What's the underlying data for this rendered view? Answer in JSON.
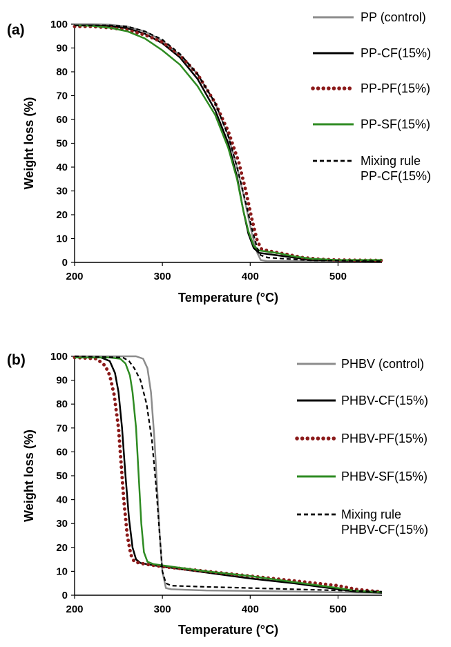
{
  "chart_data": [
    {
      "type": "line",
      "panel_label": "(a)",
      "xlabel": "Temperature (°C)",
      "ylabel": "Weight loss (%)",
      "xlim": [
        200,
        550
      ],
      "ylim": [
        0,
        100
      ],
      "xticks": [
        200,
        300,
        400,
        500
      ],
      "yticks": [
        0,
        10,
        20,
        30,
        40,
        50,
        60,
        70,
        80,
        90,
        100
      ],
      "grid": false,
      "legend_position": "right",
      "series": [
        {
          "name": "PP (control)",
          "color": "#8c8c8c",
          "style": "solid",
          "points": [
            [
              200,
              100
            ],
            [
              220,
              100
            ],
            [
              240,
              99.8
            ],
            [
              260,
              99
            ],
            [
              280,
              97
            ],
            [
              300,
              93
            ],
            [
              320,
              87
            ],
            [
              340,
              79
            ],
            [
              360,
              67
            ],
            [
              375,
              53
            ],
            [
              385,
              40
            ],
            [
              395,
              24
            ],
            [
              402,
              12
            ],
            [
              408,
              4
            ],
            [
              412,
              1
            ],
            [
              420,
              0.5
            ],
            [
              550,
              0.5
            ]
          ]
        },
        {
          "name": "PP-CF(15%)",
          "color": "#000000",
          "style": "solid",
          "points": [
            [
              200,
              99.5
            ],
            [
              220,
              99.5
            ],
            [
              240,
              99.2
            ],
            [
              260,
              98.3
            ],
            [
              280,
              96
            ],
            [
              300,
              92
            ],
            [
              320,
              86
            ],
            [
              340,
              77
            ],
            [
              360,
              64
            ],
            [
              375,
              50
            ],
            [
              385,
              36
            ],
            [
              392,
              22
            ],
            [
              398,
              12
            ],
            [
              404,
              6
            ],
            [
              410,
              4
            ],
            [
              430,
              3
            ],
            [
              450,
              2
            ],
            [
              470,
              1
            ],
            [
              550,
              0.5
            ]
          ]
        },
        {
          "name": "PP-PF(15%)",
          "color": "#8b1a1a",
          "style": "dotted",
          "points": [
            [
              200,
              99
            ],
            [
              220,
              99
            ],
            [
              240,
              98.5
            ],
            [
              260,
              97.5
            ],
            [
              280,
              95.5
            ],
            [
              300,
              92.5
            ],
            [
              320,
              87
            ],
            [
              340,
              79
            ],
            [
              360,
              67
            ],
            [
              375,
              55
            ],
            [
              387,
              42
            ],
            [
              395,
              30
            ],
            [
              402,
              18
            ],
            [
              408,
              9
            ],
            [
              413,
              5.5
            ],
            [
              425,
              4.5
            ],
            [
              440,
              3.5
            ],
            [
              460,
              2
            ],
            [
              480,
              1.3
            ],
            [
              500,
              1
            ],
            [
              550,
              0.8
            ]
          ]
        },
        {
          "name": "PP-SF(15%)",
          "color": "#2e8b22",
          "style": "solid",
          "points": [
            [
              200,
              99.5
            ],
            [
              220,
              99.3
            ],
            [
              240,
              98.5
            ],
            [
              260,
              97
            ],
            [
              280,
              94
            ],
            [
              300,
              89
            ],
            [
              320,
              83
            ],
            [
              340,
              74
            ],
            [
              360,
              62
            ],
            [
              375,
              48
            ],
            [
              385,
              35
            ],
            [
              392,
              22
            ],
            [
              398,
              13
            ],
            [
              404,
              7
            ],
            [
              410,
              5
            ],
            [
              430,
              4
            ],
            [
              450,
              2.5
            ],
            [
              470,
              1.5
            ],
            [
              500,
              1
            ],
            [
              550,
              1
            ]
          ]
        },
        {
          "name": "Mixing rule PP-CF(15%)",
          "legend_lines": [
            "Mixing rule",
            "PP-CF(15%)"
          ],
          "color": "#000000",
          "style": "dashed",
          "points": [
            [
              200,
              99.5
            ],
            [
              220,
              99.5
            ],
            [
              240,
              99.5
            ],
            [
              260,
              99
            ],
            [
              280,
              97
            ],
            [
              300,
              93.5
            ],
            [
              320,
              87.5
            ],
            [
              340,
              79
            ],
            [
              360,
              67
            ],
            [
              375,
              53
            ],
            [
              385,
              40
            ],
            [
              395,
              25
            ],
            [
              402,
              14
            ],
            [
              408,
              6
            ],
            [
              412,
              3
            ],
            [
              420,
              2
            ],
            [
              440,
              1.5
            ],
            [
              470,
              0.8
            ],
            [
              550,
              0.5
            ]
          ]
        }
      ]
    },
    {
      "type": "line",
      "panel_label": "(b)",
      "xlabel": "Temperature (°C)",
      "ylabel": "Weight loss (%)",
      "xlim": [
        200,
        550
      ],
      "ylim": [
        0,
        100
      ],
      "xticks": [
        200,
        300,
        400,
        500
      ],
      "yticks": [
        0,
        10,
        20,
        30,
        40,
        50,
        60,
        70,
        80,
        90,
        100
      ],
      "grid": false,
      "legend_position": "right",
      "series": [
        {
          "name": "PHBV (control)",
          "color": "#8c8c8c",
          "style": "solid",
          "points": [
            [
              200,
              100
            ],
            [
              270,
              100
            ],
            [
              278,
              99
            ],
            [
              283,
              95
            ],
            [
              287,
              85
            ],
            [
              291,
              65
            ],
            [
              294,
              45
            ],
            [
              297,
              25
            ],
            [
              300,
              10
            ],
            [
              304,
              3
            ],
            [
              310,
              2.5
            ],
            [
              350,
              2
            ],
            [
              400,
              1.8
            ],
            [
              450,
              1.5
            ],
            [
              500,
              1.2
            ],
            [
              550,
              1
            ]
          ]
        },
        {
          "name": "PHBV-CF(15%)",
          "color": "#000000",
          "style": "solid",
          "points": [
            [
              200,
              99.5
            ],
            [
              230,
              99.5
            ],
            [
              240,
              98
            ],
            [
              246,
              93
            ],
            [
              250,
              85
            ],
            [
              254,
              70
            ],
            [
              258,
              50
            ],
            [
              262,
              32
            ],
            [
              266,
              20
            ],
            [
              270,
              15
            ],
            [
              275,
              13.5
            ],
            [
              290,
              12.5
            ],
            [
              300,
              12
            ],
            [
              350,
              9.5
            ],
            [
              400,
              7
            ],
            [
              450,
              5
            ],
            [
              500,
              2.5
            ],
            [
              520,
              1.5
            ],
            [
              550,
              1
            ]
          ]
        },
        {
          "name": "PHBV-PF(15%)",
          "color": "#8b1a1a",
          "style": "dotted",
          "points": [
            [
              200,
              99.5
            ],
            [
              225,
              99
            ],
            [
              235,
              96
            ],
            [
              240,
              92
            ],
            [
              245,
              84
            ],
            [
              250,
              70
            ],
            [
              253,
              55
            ],
            [
              256,
              40
            ],
            [
              260,
              25
            ],
            [
              264,
              17
            ],
            [
              268,
              14
            ],
            [
              280,
              13
            ],
            [
              300,
              12
            ],
            [
              350,
              10
            ],
            [
              400,
              8
            ],
            [
              450,
              6
            ],
            [
              500,
              4
            ],
            [
              520,
              2.5
            ],
            [
              540,
              1.7
            ],
            [
              550,
              1.5
            ]
          ]
        },
        {
          "name": "PHBV-SF(15%)",
          "color": "#2e8b22",
          "style": "solid",
          "points": [
            [
              200,
              99.5
            ],
            [
              240,
              99.5
            ],
            [
              252,
              99
            ],
            [
              258,
              97
            ],
            [
              263,
              92
            ],
            [
              266,
              85
            ],
            [
              270,
              70
            ],
            [
              273,
              50
            ],
            [
              276,
              30
            ],
            [
              279,
              18
            ],
            [
              283,
              14
            ],
            [
              290,
              13
            ],
            [
              300,
              12.5
            ],
            [
              350,
              10
            ],
            [
              400,
              8
            ],
            [
              450,
              5.5
            ],
            [
              500,
              3
            ],
            [
              520,
              1.8
            ],
            [
              550,
              1.3
            ]
          ]
        },
        {
          "name": "Mixing rule PHBV-CF(15%)",
          "legend_lines": [
            "Mixing rule",
            "PHBV-CF(15%)"
          ],
          "color": "#000000",
          "style": "dashed",
          "points": [
            [
              200,
              100
            ],
            [
              255,
              99.5
            ],
            [
              262,
              98
            ],
            [
              268,
              95
            ],
            [
              275,
              90
            ],
            [
              282,
              80
            ],
            [
              288,
              65
            ],
            [
              293,
              45
            ],
            [
              297,
              25
            ],
            [
              300,
              10
            ],
            [
              304,
              5
            ],
            [
              310,
              4
            ],
            [
              350,
              3.5
            ],
            [
              400,
              3
            ],
            [
              450,
              2.5
            ],
            [
              500,
              2
            ],
            [
              550,
              1.5
            ]
          ]
        }
      ]
    }
  ]
}
